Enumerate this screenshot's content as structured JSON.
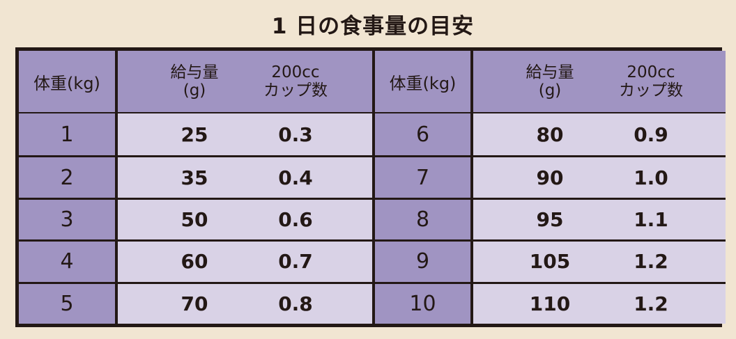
{
  "title": "1 日の食事量の目安",
  "headers": {
    "weight": "体重(kg)",
    "amount_line1": "給与量",
    "amount_line2": "(g)",
    "cups_line1": "200cc",
    "cups_line2": "カップ数"
  },
  "rows_left": [
    {
      "weight": "1",
      "amount": "25",
      "cups": "0.3"
    },
    {
      "weight": "2",
      "amount": "35",
      "cups": "0.4"
    },
    {
      "weight": "3",
      "amount": "50",
      "cups": "0.6"
    },
    {
      "weight": "4",
      "amount": "60",
      "cups": "0.7"
    },
    {
      "weight": "5",
      "amount": "70",
      "cups": "0.8"
    }
  ],
  "rows_right": [
    {
      "weight": "6",
      "amount": "80",
      "cups": "0.9"
    },
    {
      "weight": "7",
      "amount": "90",
      "cups": "1.0"
    },
    {
      "weight": "8",
      "amount": "95",
      "cups": "1.1"
    },
    {
      "weight": "9",
      "amount": "105",
      "cups": "1.2"
    },
    {
      "weight": "10",
      "amount": "110",
      "cups": "1.2"
    }
  ],
  "colors": {
    "background": "#f1e5d2",
    "header": "#a094c2",
    "cell": "#d9d2e6",
    "border": "#231815"
  }
}
